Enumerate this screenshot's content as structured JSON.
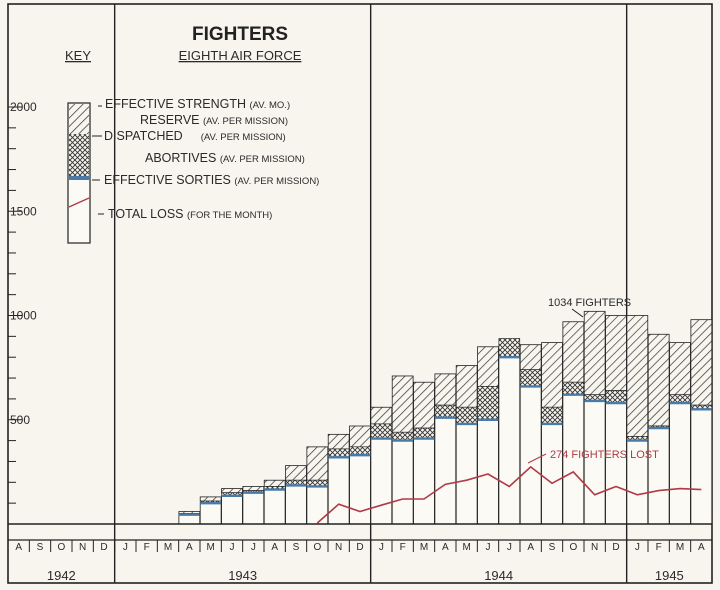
{
  "chart_data": {
    "type": "bar",
    "title": "FIGHTERS",
    "subtitle": "EIGHTH AIR FORCE",
    "key": {
      "heading": "KEY",
      "items": [
        {
          "name": "EFFECTIVE STRENGTH",
          "note": "(AV. MO.)"
        },
        {
          "name": "RESERVE",
          "note": "(AV. PER MISSION)"
        },
        {
          "name": "DISPATCHED",
          "note": "(AV. PER MISSION)"
        },
        {
          "name": "ABORTIVES",
          "note": "(AV. PER MISSION)"
        },
        {
          "name": "EFFECTIVE SORTIES",
          "note": "(AV. PER MISSION)"
        },
        {
          "name": "TOTAL LOSS",
          "note": "(FOR THE MONTH)"
        }
      ]
    },
    "yticks": [
      "500",
      "1000",
      "1500",
      "2000"
    ],
    "ylim": [
      0,
      2000
    ],
    "months": [
      "A",
      "S",
      "O",
      "N",
      "D",
      "J",
      "F",
      "M",
      "A",
      "M",
      "J",
      "J",
      "A",
      "S",
      "O",
      "N",
      "D",
      "J",
      "F",
      "M",
      "A",
      "M",
      "J",
      "J",
      "A",
      "S",
      "O",
      "N",
      "D",
      "J",
      "F",
      "M",
      "A"
    ],
    "years": [
      "1942",
      "1943",
      "1944",
      "1945"
    ],
    "effective_strength": [
      0,
      0,
      0,
      0,
      0,
      0,
      0,
      0,
      60,
      130,
      170,
      180,
      210,
      280,
      370,
      430,
      470,
      560,
      710,
      680,
      720,
      760,
      850,
      890,
      860,
      870,
      970,
      1020,
      1000,
      1000,
      910,
      870,
      980
    ],
    "dispatched": [
      0,
      0,
      0,
      0,
      0,
      0,
      0,
      0,
      50,
      110,
      150,
      160,
      180,
      210,
      210,
      360,
      370,
      480,
      440,
      460,
      570,
      560,
      660,
      890,
      740,
      560,
      680,
      620,
      640,
      420,
      470,
      620,
      570
    ],
    "effective_sorties": [
      0,
      0,
      0,
      0,
      0,
      0,
      0,
      0,
      45,
      100,
      135,
      150,
      165,
      185,
      180,
      320,
      330,
      410,
      400,
      410,
      510,
      480,
      500,
      800,
      660,
      480,
      620,
      590,
      580,
      400,
      460,
      580,
      550
    ],
    "total_loss": [
      0,
      0,
      0,
      0,
      0,
      0,
      0,
      0,
      0,
      0,
      0,
      0,
      0,
      0,
      5,
      95,
      60,
      90,
      120,
      120,
      190,
      210,
      240,
      180,
      274,
      195,
      250,
      140,
      180,
      140,
      160,
      170,
      165
    ],
    "annotations": [
      {
        "text": "1034 FIGHTERS",
        "x": 27
      },
      {
        "text": "274 FIGHTERS LOST",
        "x": 24
      }
    ],
    "colors": {
      "hatch": "#333333",
      "loss_line": "#b03a48",
      "sorties_band": "#4a7aa8",
      "grid": "#222222"
    }
  }
}
